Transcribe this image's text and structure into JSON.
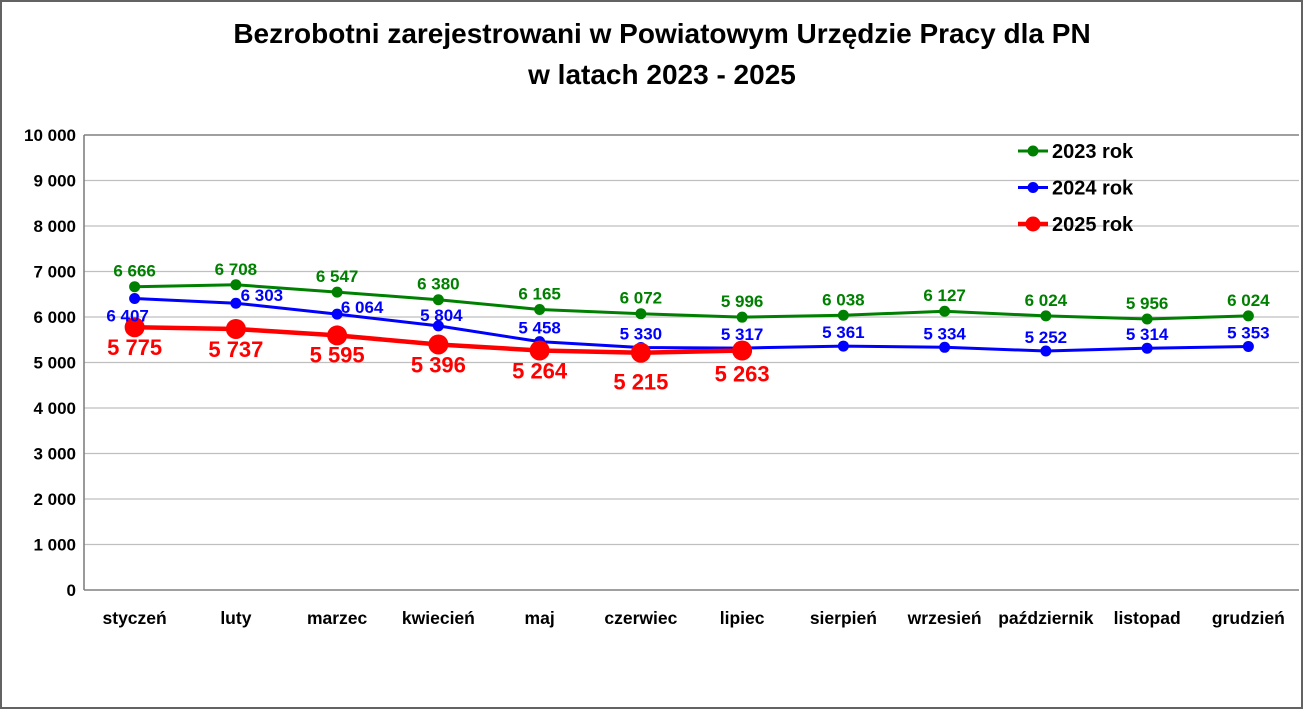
{
  "chart_data": {
    "type": "line",
    "title": "Bezrobotni zarejestrowani w Powiatowym Urzędzie Pracy dla PN",
    "subtitle": "w latach 2023 - 2025",
    "categories": [
      "styczeń",
      "luty",
      "marzec",
      "kwiecień",
      "maj",
      "czerwiec",
      "lipiec",
      "sierpień",
      "wrzesień",
      "październik",
      "listopad",
      "grudzień"
    ],
    "series": [
      {
        "name": "2023 rok",
        "color": "#008000",
        "values": [
          6666,
          6708,
          6547,
          6380,
          6165,
          6072,
          5996,
          6038,
          6127,
          6024,
          5956,
          6024
        ]
      },
      {
        "name": "2024 rok",
        "color": "#0000FF",
        "values": [
          6407,
          6303,
          6064,
          5804,
          5458,
          5330,
          5317,
          5361,
          5334,
          5252,
          5314,
          5353
        ]
      },
      {
        "name": "2025 rok",
        "color": "#FF0000",
        "values": [
          5775,
          5737,
          5595,
          5396,
          5264,
          5215,
          5263
        ]
      }
    ],
    "ylim": [
      0,
      10000
    ],
    "ytick_step": 1000,
    "ytick_labels": [
      "0",
      "1 000",
      "2 000",
      "3 000",
      "4 000",
      "5 000",
      "6 000",
      "7 000",
      "8 000",
      "9 000",
      "10 000"
    ],
    "grid": true,
    "legend_position": "upper-right",
    "data_labels": true,
    "colors": {
      "grid": "#BFBFBF",
      "axis": "#808080",
      "text": "#000000"
    }
  }
}
